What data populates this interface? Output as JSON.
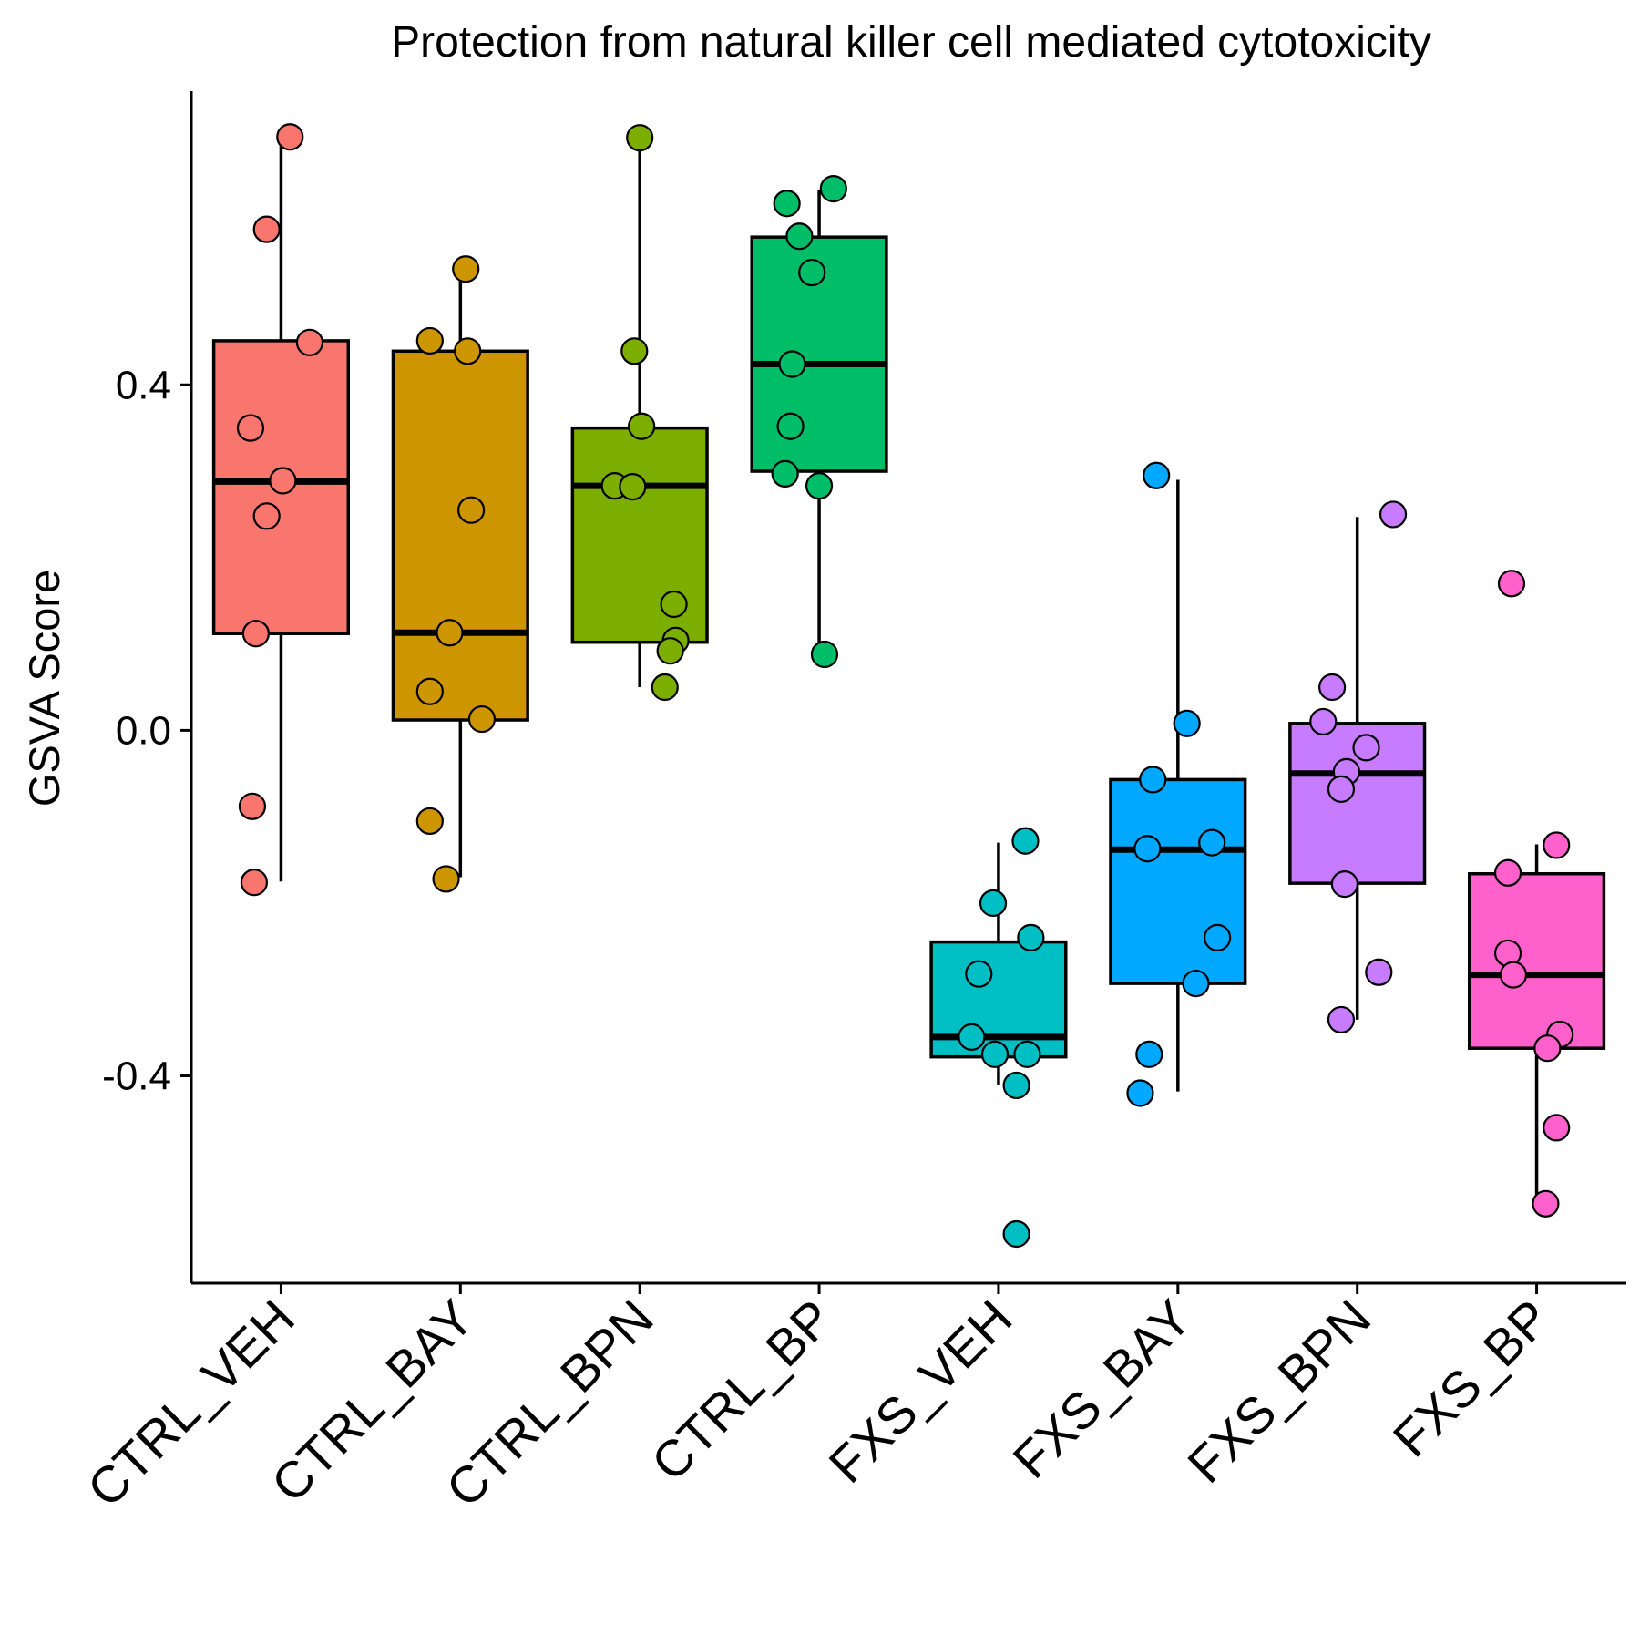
{
  "chart_data": {
    "type": "box",
    "title": "Protection from natural killer cell mediated cytotoxicity",
    "xlabel": "",
    "ylabel": "GSVA Score",
    "ylim": [
      -0.64,
      0.74
    ],
    "yticks": [
      -0.4,
      0.0,
      0.4
    ],
    "ytick_labels": [
      "-0.4",
      "0.0",
      "0.4"
    ],
    "grid": false,
    "legend": "none",
    "categories": [
      "CTRL_VEH",
      "CTRL_BAY",
      "CTRL_BPN",
      "CTRL_BP",
      "FXS_VEH",
      "FXS_BAY",
      "FXS_BPN",
      "FXS_BP"
    ],
    "colors": [
      "#F8766D",
      "#CD9600",
      "#7CAE00",
      "#00BE67",
      "#00BFC4",
      "#00A9FF",
      "#C77CFF",
      "#FF61CC"
    ],
    "series": [
      {
        "box": {
          "lower_whisker": -0.175,
          "q1": 0.112,
          "median": 0.288,
          "q3": 0.451,
          "upper_whisker": 0.687
        },
        "points": [
          0.687,
          0.58,
          0.449,
          0.35,
          0.289,
          0.248,
          0.112,
          -0.088,
          -0.176
        ],
        "jitter": [
          0.05,
          -0.08,
          0.16,
          -0.17,
          0.01,
          -0.08,
          -0.14,
          -0.16,
          -0.15
        ]
      },
      {
        "box": {
          "lower_whisker": -0.17,
          "q1": 0.012,
          "median": 0.113,
          "q3": 0.439,
          "upper_whisker": 0.534
        },
        "points": [
          0.534,
          0.451,
          0.439,
          0.255,
          0.113,
          0.045,
          0.013,
          -0.105,
          -0.172
        ],
        "jitter": [
          0.03,
          -0.17,
          0.04,
          0.06,
          -0.06,
          -0.17,
          0.12,
          -0.17,
          -0.08
        ]
      },
      {
        "box": {
          "lower_whisker": 0.05,
          "q1": 0.102,
          "median": 0.283,
          "q3": 0.35,
          "upper_whisker": 0.686
        },
        "points": [
          0.686,
          0.439,
          0.352,
          0.283,
          0.282,
          0.146,
          0.104,
          0.092,
          0.05
        ],
        "jitter": [
          0.0,
          -0.03,
          0.01,
          -0.14,
          -0.04,
          0.19,
          0.2,
          0.17,
          0.14
        ]
      },
      {
        "box": {
          "lower_whisker": 0.088,
          "q1": 0.3,
          "median": 0.424,
          "q3": 0.571,
          "upper_whisker": 0.625
        },
        "points": [
          0.627,
          0.61,
          0.572,
          0.53,
          0.424,
          0.352,
          0.297,
          0.283,
          0.088
        ],
        "jitter": [
          0.08,
          -0.18,
          -0.11,
          -0.04,
          -0.15,
          -0.16,
          -0.19,
          0.0,
          0.03
        ]
      },
      {
        "box": {
          "lower_whisker": -0.41,
          "q1": -0.378,
          "median": -0.355,
          "q3": -0.245,
          "upper_whisker": -0.13
        },
        "points": [
          -0.128,
          -0.2,
          -0.24,
          -0.282,
          -0.355,
          -0.375,
          -0.375,
          -0.411,
          -0.583
        ],
        "jitter": [
          0.15,
          -0.03,
          0.18,
          -0.11,
          -0.15,
          -0.02,
          0.16,
          0.1,
          0.1
        ]
      },
      {
        "box": {
          "lower_whisker": -0.418,
          "q1": -0.293,
          "median": -0.138,
          "q3": -0.057,
          "upper_whisker": 0.29
        },
        "points": [
          0.295,
          0.008,
          -0.057,
          -0.137,
          -0.13,
          -0.24,
          -0.293,
          -0.375,
          -0.42
        ],
        "jitter": [
          -0.12,
          0.05,
          -0.14,
          -0.17,
          0.19,
          0.22,
          0.1,
          -0.16,
          -0.21
        ]
      },
      {
        "box": {
          "lower_whisker": -0.335,
          "q1": -0.177,
          "median": -0.05,
          "q3": 0.008,
          "upper_whisker": 0.247
        },
        "points": [
          0.25,
          0.05,
          0.01,
          -0.02,
          -0.048,
          -0.068,
          -0.178,
          -0.28,
          -0.335
        ],
        "jitter": [
          0.2,
          -0.14,
          -0.19,
          0.05,
          -0.06,
          -0.09,
          -0.07,
          0.12,
          -0.09
        ]
      },
      {
        "box": {
          "lower_whisker": -0.55,
          "q1": -0.368,
          "median": -0.283,
          "q3": -0.166,
          "upper_whisker": -0.132
        },
        "points": [
          0.17,
          -0.133,
          -0.165,
          -0.258,
          -0.283,
          -0.352,
          -0.368,
          -0.46,
          -0.548
        ],
        "jitter": [
          -0.14,
          0.11,
          -0.16,
          -0.16,
          -0.13,
          0.13,
          0.06,
          0.11,
          0.05
        ]
      }
    ]
  }
}
